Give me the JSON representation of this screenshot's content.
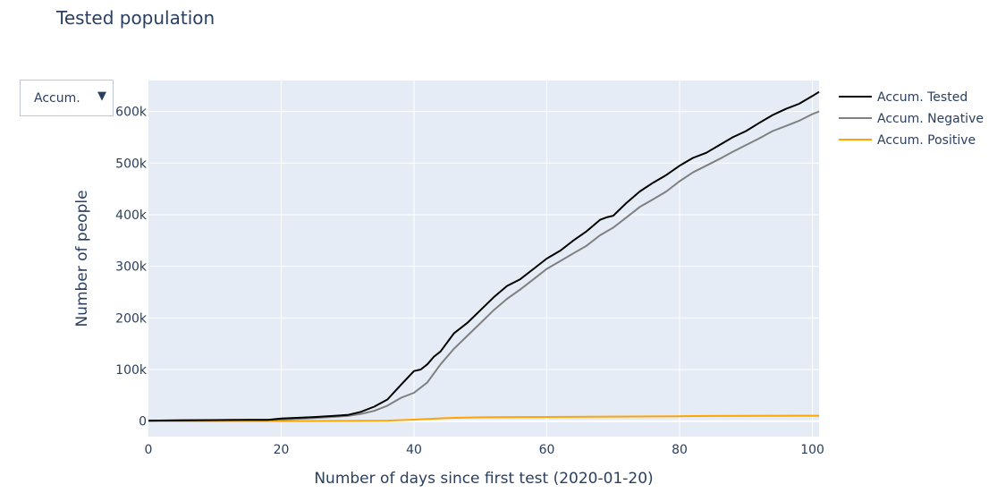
{
  "title": "Tested population",
  "dropdown": {
    "label": "Accum.",
    "arrow": "▼"
  },
  "colors": {
    "plot_bg": "#e5ecf6",
    "grid": "#ffffff"
  },
  "chart_data": {
    "type": "line",
    "title": "Tested population",
    "xlabel": "Number of days since first test (2020-01-20)",
    "ylabel": "Number of people",
    "xlim": [
      0,
      101
    ],
    "ylim": [
      -30000,
      660000
    ],
    "x_ticks": [
      0,
      20,
      40,
      60,
      80,
      100
    ],
    "x_tick_labels": [
      "0",
      "20",
      "40",
      "60",
      "80",
      "100"
    ],
    "y_ticks": [
      0,
      100000,
      200000,
      300000,
      400000,
      500000,
      600000
    ],
    "y_tick_labels": [
      "0",
      "100k",
      "200k",
      "300k",
      "400k",
      "500k",
      "600k"
    ],
    "grid": true,
    "legend_position": "right",
    "series": [
      {
        "name": "Accum. Tested",
        "color": "#000000",
        "x": [
          0,
          5,
          10,
          15,
          18,
          20,
          25,
          30,
          32,
          34,
          36,
          38,
          40,
          41,
          42,
          43,
          44,
          46,
          48,
          50,
          52,
          54,
          56,
          58,
          60,
          62,
          64,
          66,
          68,
          69,
          70,
          72,
          74,
          76,
          78,
          80,
          82,
          84,
          86,
          88,
          90,
          92,
          94,
          96,
          98,
          100,
          101
        ],
        "y": [
          1000,
          1500,
          2000,
          2500,
          2500,
          5000,
          8000,
          12000,
          18000,
          28000,
          42000,
          70000,
          97000,
          100000,
          110000,
          125000,
          135000,
          170000,
          190000,
          215000,
          240000,
          262000,
          275000,
          295000,
          315000,
          330000,
          350000,
          368000,
          390000,
          395000,
          398000,
          423000,
          445000,
          462000,
          477000,
          495000,
          510000,
          520000,
          535000,
          550000,
          562000,
          578000,
          593000,
          605000,
          615000,
          630000,
          638000
        ]
      },
      {
        "name": "Accum. Negative",
        "color": "#808080",
        "x": [
          0,
          5,
          10,
          15,
          18,
          20,
          25,
          30,
          32,
          34,
          36,
          38,
          40,
          42,
          44,
          46,
          48,
          50,
          52,
          54,
          56,
          58,
          60,
          62,
          64,
          66,
          68,
          70,
          72,
          74,
          76,
          78,
          80,
          82,
          84,
          86,
          88,
          90,
          92,
          94,
          96,
          98,
          100,
          101
        ],
        "y": [
          1000,
          1500,
          2000,
          2500,
          2500,
          3000,
          6000,
          10000,
          14000,
          20000,
          30000,
          45000,
          55000,
          75000,
          110000,
          140000,
          165000,
          190000,
          215000,
          237000,
          255000,
          275000,
          295000,
          310000,
          325000,
          340000,
          360000,
          375000,
          395000,
          415000,
          430000,
          445000,
          465000,
          482000,
          495000,
          508000,
          522000,
          535000,
          548000,
          562000,
          572000,
          582000,
          595000,
          600000
        ]
      },
      {
        "name": "Accum. Positive",
        "color": "#ffa500",
        "x": [
          0,
          10,
          20,
          30,
          36,
          40,
          45,
          50,
          52,
          60,
          70,
          80,
          85,
          90,
          100,
          101
        ],
        "y": [
          0,
          0,
          100,
          500,
          1000,
          3000,
          6000,
          7500,
          7800,
          8200,
          8800,
          9500,
          10000,
          10200,
          10500,
          10600
        ]
      }
    ]
  }
}
